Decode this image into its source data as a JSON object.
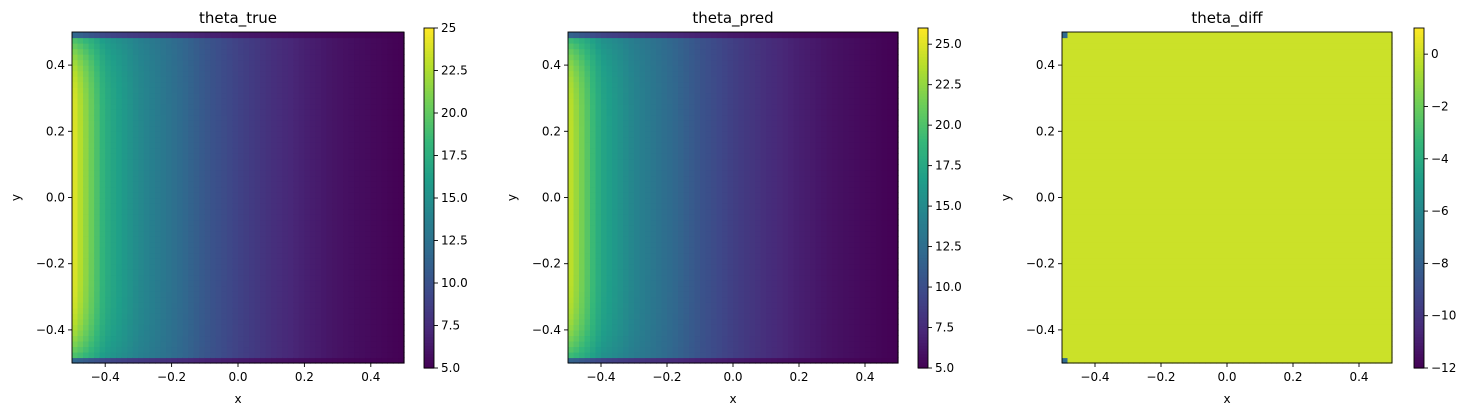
{
  "figure": {
    "colormap": "viridis",
    "colormap_stops": [
      "#440154",
      "#482878",
      "#3e4989",
      "#31688e",
      "#26828e",
      "#1f9e89",
      "#35b779",
      "#6ece58",
      "#b5de2b",
      "#fde725"
    ]
  },
  "chart_data": [
    {
      "type": "heatmap",
      "title": "theta_true",
      "xlabel": "x",
      "ylabel": "y",
      "xlim": [
        -0.5,
        0.5
      ],
      "ylim": [
        -0.5,
        0.5
      ],
      "x_ticks": [
        "−0.4",
        "−0.2",
        "0.0",
        "0.2",
        "0.4"
      ],
      "y_ticks": [
        "−0.4",
        "−0.2",
        "0.0",
        "0.2",
        "0.4"
      ],
      "x_tick_values": [
        -0.4,
        -0.2,
        0.0,
        0.2,
        0.4
      ],
      "y_tick_values": [
        -0.4,
        -0.2,
        0.0,
        0.2,
        0.4
      ],
      "colorbar": {
        "min": 5,
        "max": 25,
        "tick_values": [
          5.0,
          7.5,
          10.0,
          12.5,
          15.0,
          17.5,
          20.0,
          22.5,
          25.0
        ],
        "tick_labels": [
          "5.0",
          "7.5",
          "10.0",
          "12.5",
          "15.0",
          "17.5",
          "20.0",
          "22.5",
          "25"
        ]
      },
      "field": {
        "x": [
          -0.5,
          -0.45,
          -0.4,
          -0.3,
          -0.2,
          -0.1,
          0.0,
          0.1,
          0.2,
          0.3,
          0.4,
          0.5
        ],
        "value_at_center": [
          24.5,
          21.0,
          17.5,
          14.5,
          12.5,
          10.5,
          9.0,
          7.8,
          6.8,
          6.0,
          5.5,
          5.0
        ],
        "boundary_value": 5.0
      }
    },
    {
      "type": "heatmap",
      "title": "theta_pred",
      "xlabel": "x",
      "ylabel": "y",
      "xlim": [
        -0.5,
        0.5
      ],
      "ylim": [
        -0.5,
        0.5
      ],
      "x_ticks": [
        "−0.4",
        "−0.2",
        "0.0",
        "0.2",
        "0.4"
      ],
      "y_ticks": [
        "−0.4",
        "−0.2",
        "0.0",
        "0.2",
        "0.4"
      ],
      "x_tick_values": [
        -0.4,
        -0.2,
        0.0,
        0.2,
        0.4
      ],
      "y_tick_values": [
        -0.4,
        -0.2,
        0.0,
        0.2,
        0.4
      ],
      "colorbar": {
        "min": 5,
        "max": 26,
        "tick_values": [
          5.0,
          7.5,
          10.0,
          12.5,
          15.0,
          17.5,
          20.0,
          22.5,
          25.0
        ],
        "tick_labels": [
          "5.0",
          "7.5",
          "10.0",
          "12.5",
          "15.0",
          "17.5",
          "20.0",
          "22.5",
          "25.0"
        ]
      },
      "field": {
        "x": [
          -0.5,
          -0.45,
          -0.4,
          -0.3,
          -0.2,
          -0.1,
          0.0,
          0.1,
          0.2,
          0.3,
          0.4,
          0.5
        ],
        "value_at_center": [
          24.5,
          21.0,
          17.5,
          14.5,
          12.5,
          10.5,
          9.0,
          7.8,
          6.8,
          6.0,
          5.5,
          5.0
        ],
        "boundary_value": 5.0
      }
    },
    {
      "type": "heatmap",
      "title": "theta_diff",
      "xlabel": "x",
      "ylabel": "y",
      "xlim": [
        -0.5,
        0.5
      ],
      "ylim": [
        -0.5,
        0.5
      ],
      "x_ticks": [
        "−0.4",
        "−0.2",
        "0.0",
        "0.2",
        "0.4"
      ],
      "y_ticks": [
        "−0.4",
        "−0.2",
        "0.0",
        "0.2",
        "0.4"
      ],
      "x_tick_values": [
        -0.4,
        -0.2,
        0.0,
        0.2,
        0.4
      ],
      "y_tick_values": [
        -0.4,
        -0.2,
        0.0,
        0.2,
        0.4
      ],
      "colorbar": {
        "min": -12,
        "max": 1,
        "tick_values": [
          -12,
          -10,
          -8,
          -6,
          -4,
          -2,
          0
        ],
        "tick_labels": [
          "−12",
          "−10",
          "−8",
          "−6",
          "−4",
          "−2",
          "0"
        ]
      },
      "field": {
        "uniform_value": 0.0,
        "corner_value": -7.5,
        "corner_cells": [
          "top-left",
          "bottom-left"
        ]
      }
    }
  ]
}
